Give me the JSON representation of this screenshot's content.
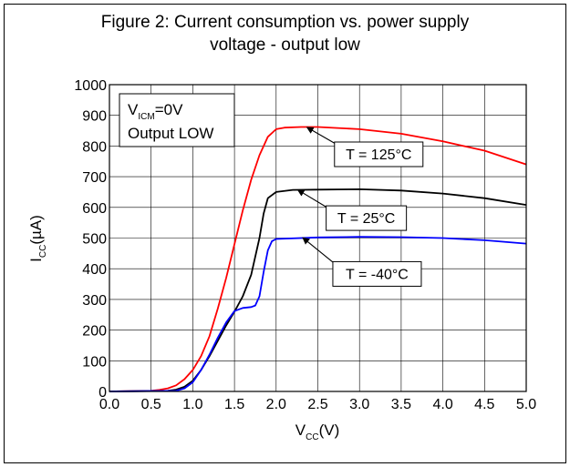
{
  "chart_data": {
    "type": "line",
    "title_lines": [
      "Figure 2: Current consumption vs. power supply",
      "voltage - output low"
    ],
    "xlabel": {
      "main": "V",
      "sub": "CC",
      "rest": "(V)"
    },
    "ylabel": {
      "main": "I",
      "sub": "CC",
      "rest": "(µA)"
    },
    "xlim": [
      0,
      5
    ],
    "ylim": [
      0,
      1000
    ],
    "x_ticks": [
      "0.0",
      "0.5",
      "1.0",
      "1.5",
      "2.0",
      "2.5",
      "3.0",
      "3.5",
      "4.0",
      "4.5",
      "5.0"
    ],
    "y_ticks": [
      "0",
      "100",
      "200",
      "300",
      "400",
      "500",
      "600",
      "700",
      "800",
      "900",
      "1000"
    ],
    "grid": true,
    "condition_box": {
      "line1_main": "V",
      "line1_sub": "ICM",
      "line1_rest": "=0V",
      "line2": "Output LOW"
    },
    "series": [
      {
        "label": "T = 125°C",
        "color": "#ff0000",
        "points": [
          [
            0,
            0
          ],
          [
            0.5,
            2
          ],
          [
            0.6,
            5
          ],
          [
            0.7,
            10
          ],
          [
            0.8,
            20
          ],
          [
            0.9,
            40
          ],
          [
            1.0,
            70
          ],
          [
            1.1,
            115
          ],
          [
            1.2,
            180
          ],
          [
            1.3,
            270
          ],
          [
            1.4,
            370
          ],
          [
            1.5,
            480
          ],
          [
            1.6,
            590
          ],
          [
            1.7,
            690
          ],
          [
            1.8,
            770
          ],
          [
            1.9,
            830
          ],
          [
            2.0,
            855
          ],
          [
            2.1,
            860
          ],
          [
            2.3,
            862
          ],
          [
            2.5,
            862
          ],
          [
            3.0,
            855
          ],
          [
            3.5,
            840
          ],
          [
            4.0,
            815
          ],
          [
            4.5,
            785
          ],
          [
            5.0,
            740
          ]
        ]
      },
      {
        "label": "T = 25°C",
        "color": "#000000",
        "points": [
          [
            0,
            0
          ],
          [
            0.7,
            2
          ],
          [
            0.8,
            6
          ],
          [
            0.9,
            15
          ],
          [
            1.0,
            35
          ],
          [
            1.1,
            70
          ],
          [
            1.2,
            115
          ],
          [
            1.3,
            165
          ],
          [
            1.4,
            215
          ],
          [
            1.5,
            260
          ],
          [
            1.6,
            310
          ],
          [
            1.7,
            380
          ],
          [
            1.8,
            500
          ],
          [
            1.85,
            580
          ],
          [
            1.9,
            630
          ],
          [
            2.0,
            650
          ],
          [
            2.2,
            657
          ],
          [
            2.5,
            658
          ],
          [
            3.0,
            659
          ],
          [
            3.5,
            655
          ],
          [
            4.0,
            645
          ],
          [
            4.5,
            630
          ],
          [
            5.0,
            608
          ]
        ]
      },
      {
        "label": "T = -40°C",
        "color": "#0000ff",
        "points": [
          [
            0,
            0
          ],
          [
            0.8,
            2
          ],
          [
            0.9,
            10
          ],
          [
            1.0,
            30
          ],
          [
            1.1,
            70
          ],
          [
            1.2,
            120
          ],
          [
            1.3,
            175
          ],
          [
            1.4,
            225
          ],
          [
            1.5,
            262
          ],
          [
            1.6,
            272
          ],
          [
            1.7,
            275
          ],
          [
            1.75,
            280
          ],
          [
            1.8,
            310
          ],
          [
            1.85,
            390
          ],
          [
            1.9,
            460
          ],
          [
            1.95,
            490
          ],
          [
            2.0,
            497
          ],
          [
            2.5,
            502
          ],
          [
            3.0,
            504
          ],
          [
            3.5,
            503
          ],
          [
            4.0,
            500
          ],
          [
            4.5,
            493
          ],
          [
            5.0,
            482
          ]
        ]
      }
    ],
    "annotations": [
      {
        "series": 0,
        "text": "T = 125°C",
        "arrow_to": [
          2.37,
          861
        ],
        "box_at": [
          2.7,
          773
        ]
      },
      {
        "series": 1,
        "text": "T = 25°C",
        "arrow_to": [
          2.26,
          657
        ],
        "box_at": [
          2.6,
          565
        ]
      },
      {
        "series": 2,
        "text": "T = -40°C",
        "arrow_to": [
          2.32,
          501
        ],
        "box_at": [
          2.68,
          383
        ]
      }
    ]
  }
}
